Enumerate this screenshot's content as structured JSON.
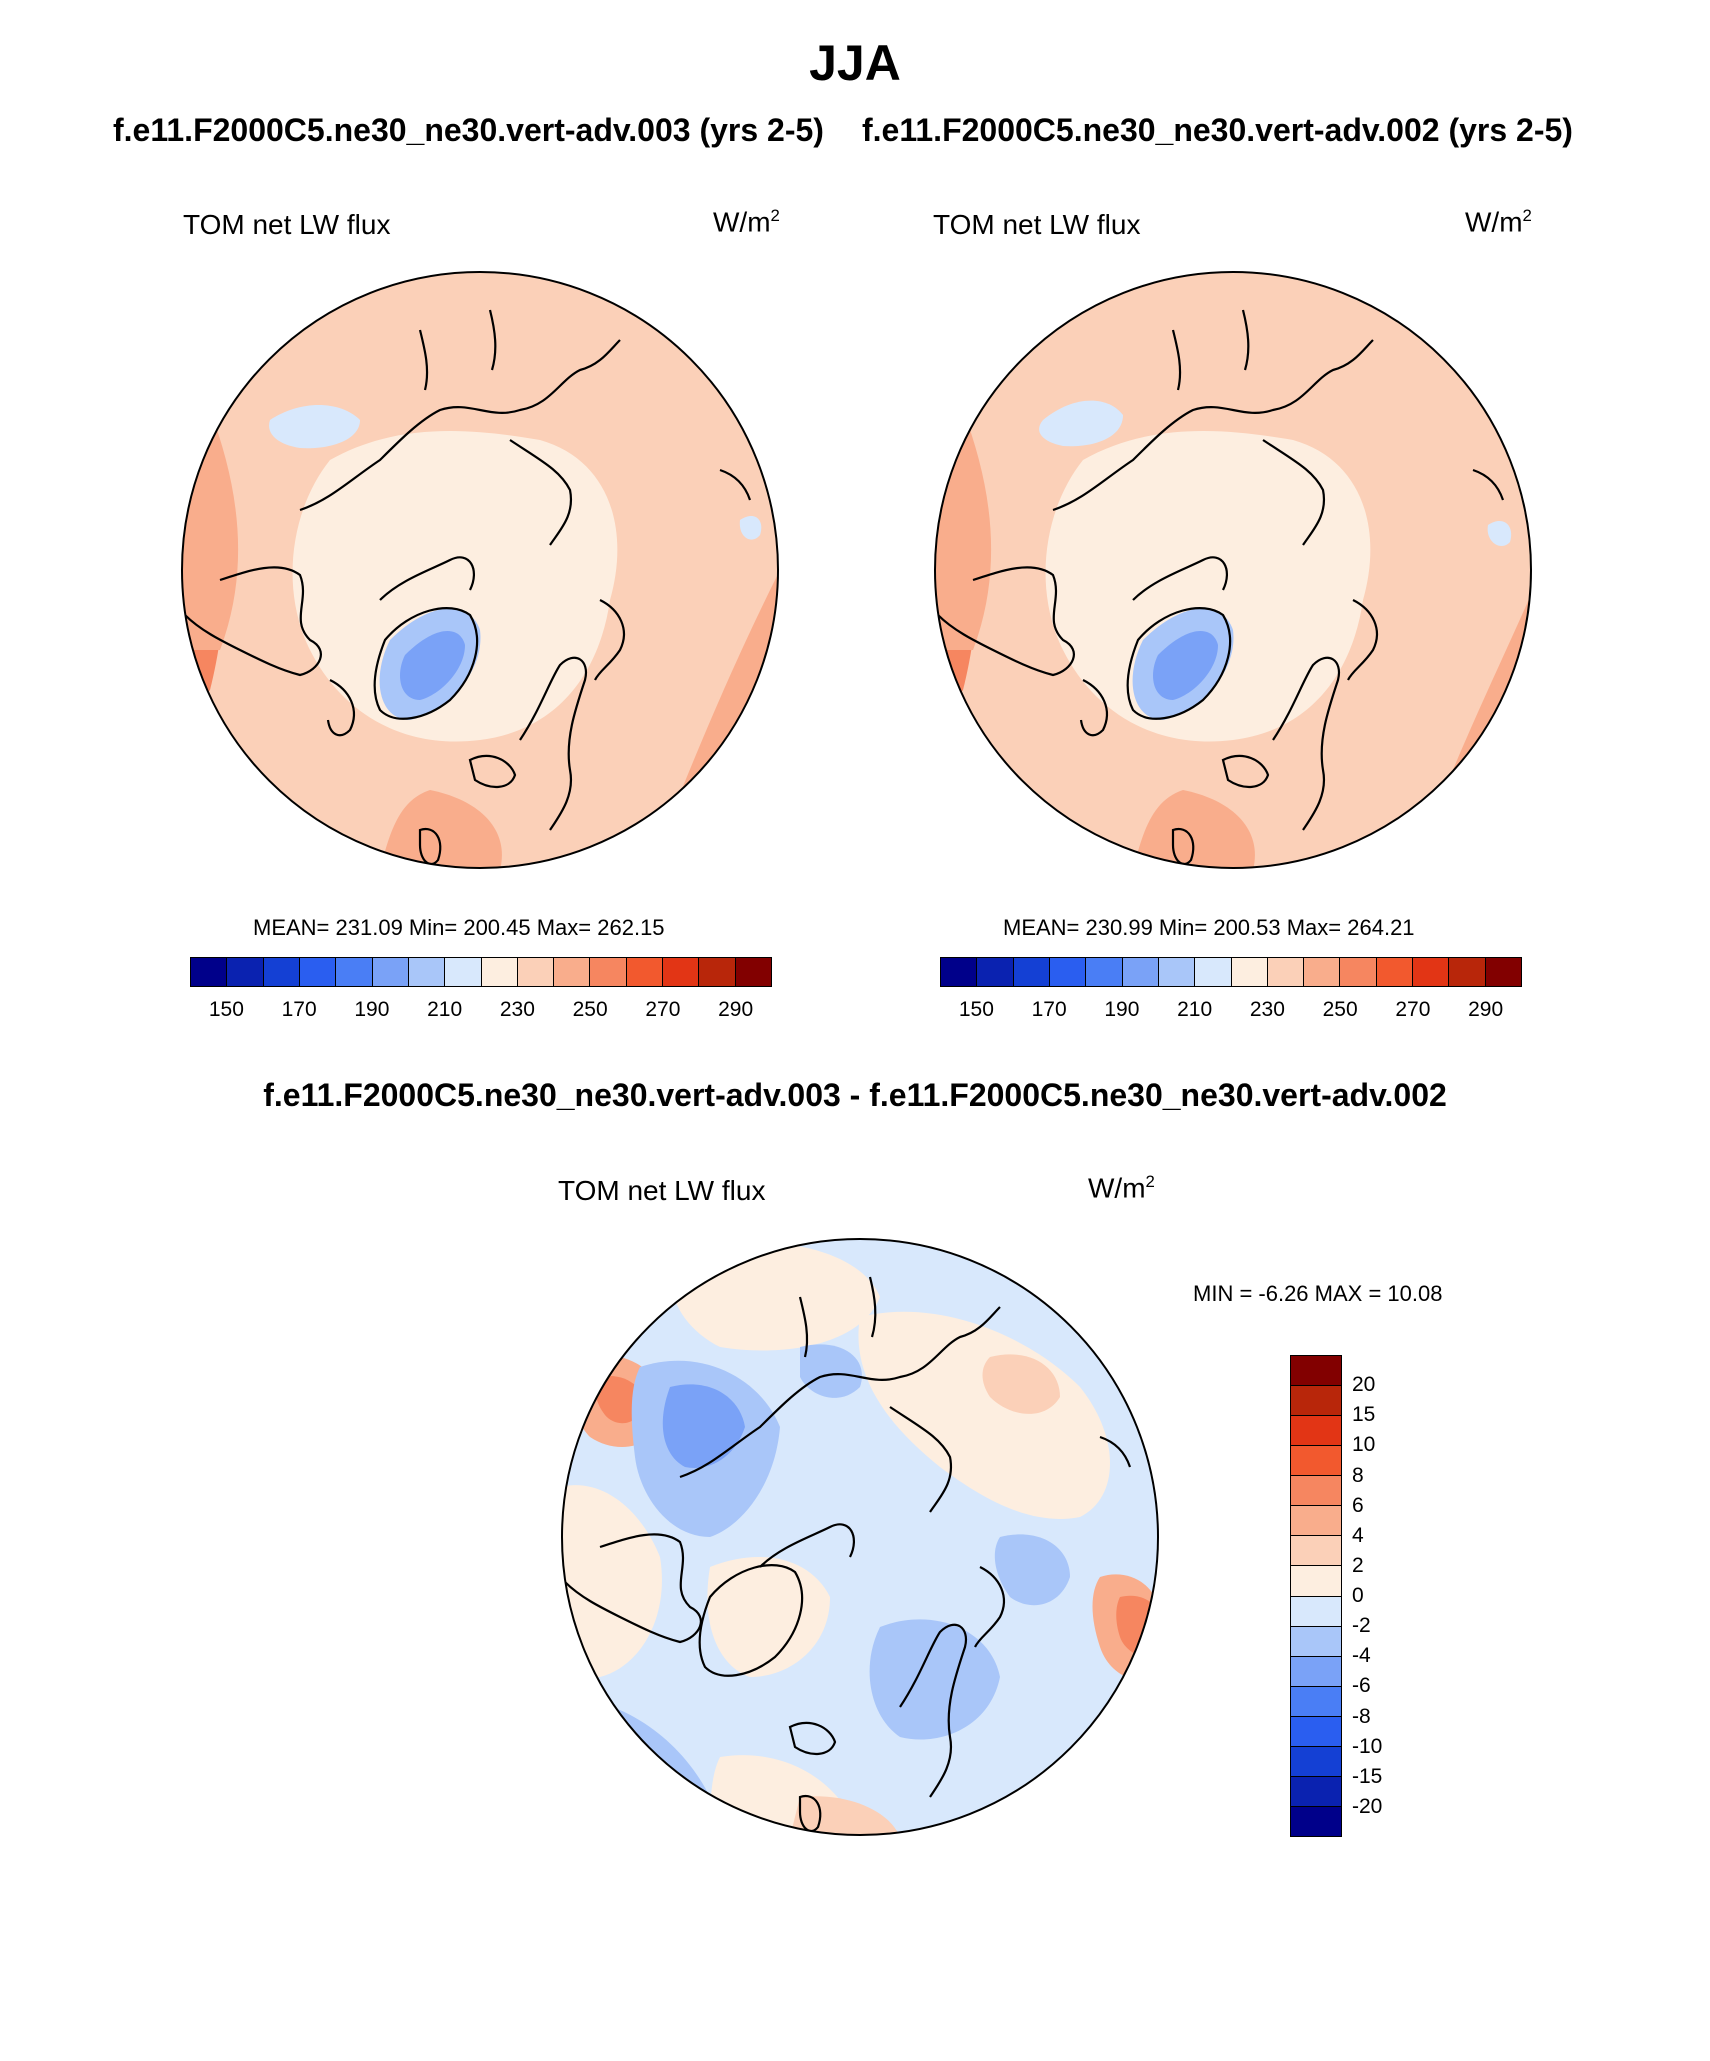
{
  "main_title": "JJA",
  "left_case": "f.e11.F2000C5.ne30_ne30.vert-adv.003 (yrs 2-5)",
  "right_case": "f.e11.F2000C5.ne30_ne30.vert-adv.002 (yrs 2-5)",
  "diff_title": "f.e11.F2000C5.ne30_ne30.vert-adv.003 - f.e11.F2000C5.ne30_ne30.vert-adv.002",
  "panels": [
    {
      "var_label": "TOM net LW flux",
      "units_base": "W/m",
      "units_sup": "2",
      "stats": "MEAN= 231.09  Min= 200.45  Max= 262.15"
    },
    {
      "var_label": "TOM net LW flux",
      "units_base": "W/m",
      "units_sup": "2",
      "stats": "MEAN= 230.99  Min= 200.53  Max= 264.21"
    },
    {
      "var_label": "TOM net LW flux",
      "units_base": "W/m",
      "units_sup": "2",
      "stats": "MIN =  -6.26 MAX =  10.08"
    }
  ],
  "colors": {
    "abs_scale": [
      "#00008a",
      "#0a22b0",
      "#1440d4",
      "#2a5ef0",
      "#4a7ef5",
      "#7aa2f7",
      "#a9c6f9",
      "#d8e8fc",
      "#fdeee0",
      "#fbd0b8",
      "#f9ad8c",
      "#f68660",
      "#f2592e",
      "#e23515",
      "#b8260a",
      "#820000"
    ],
    "diff_scale": [
      "#820000",
      "#b8260a",
      "#e23515",
      "#f2592e",
      "#f68660",
      "#f9ad8c",
      "#fbd0b8",
      "#fdeee0",
      "#d8e8fc",
      "#a9c6f9",
      "#7aa2f7",
      "#4a7ef5",
      "#2a5ef0",
      "#1440d4",
      "#0a22b0",
      "#00008a"
    ]
  },
  "chart_data": [
    {
      "type": "heatmap",
      "projection": "north-polar stereographic",
      "season": "JJA",
      "case": "f.e11.F2000C5.ne30_ne30.vert-adv.003 (yrs 2-5)",
      "variable": "TOM net LW flux",
      "units": "W/m2",
      "mean": 231.09,
      "min": 200.45,
      "max": 262.15,
      "colorbar_ticks": [
        "150",
        "170",
        "190",
        "210",
        "230",
        "250",
        "270",
        "290"
      ]
    },
    {
      "type": "heatmap",
      "projection": "north-polar stereographic",
      "season": "JJA",
      "case": "f.e11.F2000C5.ne30_ne30.vert-adv.002 (yrs 2-5)",
      "variable": "TOM net LW flux",
      "units": "W/m2",
      "mean": 230.99,
      "min": 200.53,
      "max": 264.21,
      "colorbar_ticks": [
        "150",
        "170",
        "190",
        "210",
        "230",
        "250",
        "270",
        "290"
      ]
    },
    {
      "type": "heatmap",
      "projection": "north-polar stereographic",
      "season": "JJA",
      "case": "f.e11.F2000C5.ne30_ne30.vert-adv.003 - f.e11.F2000C5.ne30_ne30.vert-adv.002",
      "variable": "TOM net LW flux",
      "units": "W/m2",
      "min": -6.26,
      "max": 10.08,
      "colorbar_ticks": [
        "20",
        "15",
        "10",
        "8",
        "6",
        "4",
        "2",
        "0",
        "-2",
        "-4",
        "-6",
        "-8",
        "-10",
        "-15",
        "-20"
      ]
    }
  ]
}
